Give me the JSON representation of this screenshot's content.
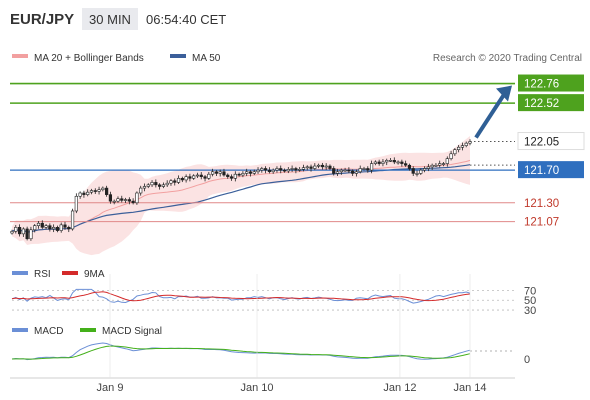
{
  "header": {
    "symbol": "EUR/JPY",
    "interval": "30 MIN",
    "time": "06:54:40 CET"
  },
  "legend": {
    "ma20_label": "MA 20 + Bollinger Bands",
    "ma50_label": "MA 50",
    "credit": "Research © 2020 Trading Central"
  },
  "colors": {
    "price": "#222222",
    "ma20": "#f2a0a0",
    "ma20_band": "#fbe3e3",
    "ma50": "#3b5f9a",
    "target": "#4ea21e",
    "resistance": "#e08888",
    "support_pivot": "#2f6fbf",
    "arrow": "#2f5f95",
    "rsi": "#6b8fd6",
    "rsi_ma": "#d42a2a",
    "macd": "#6b8fd6",
    "macd_signal": "#44b01a"
  },
  "chart_data": [
    {
      "type": "candlestick",
      "title": "EUR/JPY",
      "ylim": [
        120.6,
        122.95
      ],
      "x_ticks": [
        "Jan 9",
        "Jan 10",
        "Jan 12",
        "Jan 14"
      ],
      "x_tick_positions": [
        0.214,
        0.535,
        0.847,
        1.0
      ],
      "price_close_series": [
        120.95,
        121.0,
        120.92,
        120.98,
        120.86,
        120.97,
        121.02,
        121.05,
        121.0,
        121.02,
        120.98,
        121.0,
        120.96,
        121.03,
        121.0,
        120.98,
        121.2,
        121.38,
        121.42,
        121.4,
        121.43,
        121.45,
        121.44,
        121.46,
        121.48,
        121.4,
        121.32,
        121.32,
        121.35,
        121.33,
        121.34,
        121.32,
        121.3,
        121.42,
        121.48,
        121.5,
        121.52,
        121.55,
        121.52,
        121.5,
        121.52,
        121.54,
        121.57,
        121.55,
        121.6,
        121.58,
        121.62,
        121.6,
        121.63,
        121.64,
        121.62,
        121.6,
        121.65,
        121.68,
        121.66,
        121.68,
        121.64,
        121.62,
        121.6,
        121.65,
        121.64,
        121.66,
        121.68,
        121.66,
        121.68,
        121.7,
        121.72,
        121.7,
        121.68,
        121.7,
        121.72,
        121.7,
        121.69,
        121.71,
        121.72,
        121.7,
        121.71,
        121.73,
        121.74,
        121.72,
        121.75,
        121.76,
        121.74,
        121.75,
        121.72,
        121.66,
        121.68,
        121.7,
        121.7,
        121.69,
        121.66,
        121.68,
        121.72,
        121.72,
        121.7,
        121.78,
        121.8,
        121.78,
        121.8,
        121.82,
        121.82,
        121.8,
        121.8,
        121.78,
        121.76,
        121.72,
        121.66,
        121.66,
        121.7,
        121.72,
        121.74,
        121.76,
        121.76,
        121.78,
        121.78,
        121.84,
        121.9,
        121.95,
        121.98,
        122.0,
        122.03,
        122.05
      ],
      "series": [
        {
          "name": "MA 20 + Bollinger Bands"
        },
        {
          "name": "MA 50"
        }
      ],
      "levels": [
        {
          "value": 122.76,
          "label": "122.76",
          "kind": "target"
        },
        {
          "value": 122.52,
          "label": "122.52",
          "kind": "target"
        },
        {
          "value": 122.05,
          "label": "122.05",
          "kind": "last"
        },
        {
          "value": 121.7,
          "label": "121.70",
          "kind": "pivot"
        },
        {
          "value": 121.3,
          "label": "121.30",
          "kind": "support"
        },
        {
          "value": 121.07,
          "label": "121.07",
          "kind": "support"
        }
      ]
    },
    {
      "type": "line",
      "title": "RSI",
      "ylim": [
        20,
        85
      ],
      "y_ticks": [
        "70",
        "50",
        "30"
      ],
      "series": [
        {
          "name": "RSI"
        },
        {
          "name": "9MA"
        }
      ]
    },
    {
      "type": "line",
      "title": "MACD",
      "y_ticks": [
        "0"
      ],
      "series": [
        {
          "name": "MACD"
        },
        {
          "name": "MACD Signal"
        }
      ]
    }
  ]
}
